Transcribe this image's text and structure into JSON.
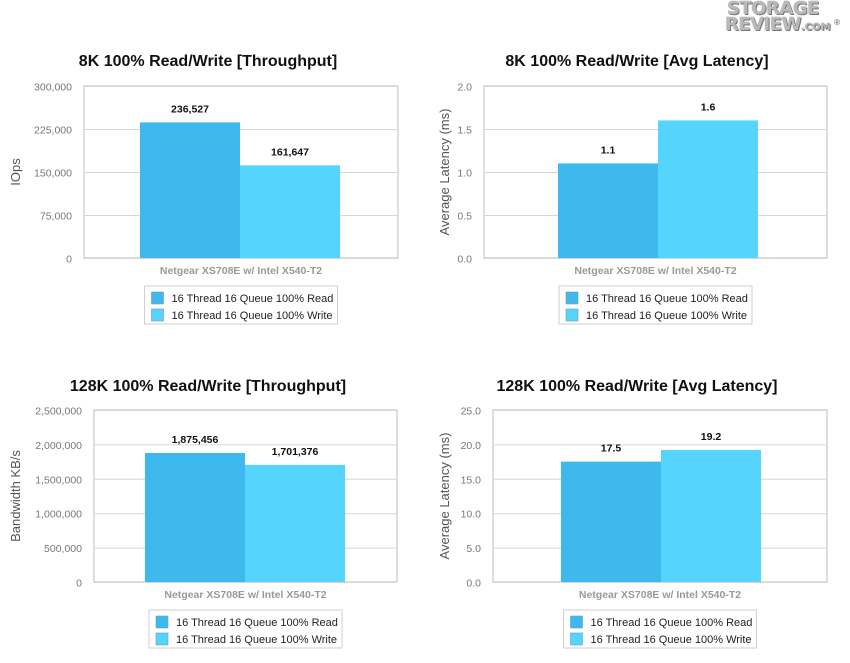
{
  "logo": {
    "top": "STORAGE",
    "bottom": "REVIEW",
    "suffix": ".COM",
    "reg": "®"
  },
  "colors": {
    "read": "#3fb8ee",
    "write": "#55d4fd",
    "grid": "#d6d6d6",
    "axis": "#bdbdbd"
  },
  "chart_data": [
    {
      "type": "bar",
      "title": "8K 100% Read/Write [Throughput]",
      "ylabel": "IOps",
      "xlabel": "Netgear XS708E w/ Intel X540-T2",
      "categories": [
        "Netgear XS708E w/ Intel X540-T2"
      ],
      "ylim": [
        0,
        300000
      ],
      "yticks": [
        0,
        75000,
        150000,
        225000,
        300000
      ],
      "ytick_labels": [
        "0",
        "75,000",
        "150,000",
        "225,000",
        "300,000"
      ],
      "series": [
        {
          "name": "16 Thread 16 Queue 100% Read",
          "values": [
            236527
          ],
          "labels": [
            "236,527"
          ]
        },
        {
          "name": "16 Thread 16 Queue 100% Write",
          "values": [
            161647
          ],
          "labels": [
            "161,647"
          ]
        }
      ],
      "grid": true,
      "legend": "bottom"
    },
    {
      "type": "bar",
      "title": "8K 100% Read/Write [Avg Latency]",
      "ylabel": "Average Latency (ms)",
      "xlabel": "Netgear XS708E w/ Intel X540-T2",
      "categories": [
        "Netgear XS708E w/ Intel X540-T2"
      ],
      "ylim": [
        0,
        2.0
      ],
      "yticks": [
        0,
        0.5,
        1.0,
        1.5,
        2.0
      ],
      "ytick_labels": [
        "0.0",
        "0.5",
        "1.0",
        "1.5",
        "2.0"
      ],
      "series": [
        {
          "name": "16 Thread 16 Queue 100% Read",
          "values": [
            1.1
          ],
          "labels": [
            "1.1"
          ]
        },
        {
          "name": "16 Thread 16 Queue 100% Write",
          "values": [
            1.6
          ],
          "labels": [
            "1.6"
          ]
        }
      ],
      "grid": true,
      "legend": "bottom"
    },
    {
      "type": "bar",
      "title": "128K 100% Read/Write [Throughput]",
      "ylabel": "Bandwidth KB/s",
      "xlabel": "Netgear XS708E w/ Intel X540-T2",
      "categories": [
        "Netgear XS708E w/ Intel X540-T2"
      ],
      "ylim": [
        0,
        2500000
      ],
      "yticks": [
        0,
        500000,
        1000000,
        1500000,
        2000000,
        2500000
      ],
      "ytick_labels": [
        "0",
        "500,000",
        "1,000,000",
        "1,500,000",
        "2,000,000",
        "2,500,000"
      ],
      "series": [
        {
          "name": "16 Thread 16 Queue 100% Read",
          "values": [
            1875456
          ],
          "labels": [
            "1,875,456"
          ]
        },
        {
          "name": "16 Thread 16 Queue 100% Write",
          "values": [
            1701376
          ],
          "labels": [
            "1,701,376"
          ]
        }
      ],
      "grid": true,
      "legend": "bottom"
    },
    {
      "type": "bar",
      "title": "128K 100% Read/Write [Avg Latency]",
      "ylabel": "Average Latency (ms)",
      "xlabel": "Netgear XS708E w/ Intel X540-T2",
      "categories": [
        "Netgear XS708E w/ Intel X540-T2"
      ],
      "ylim": [
        0,
        25.0
      ],
      "yticks": [
        0,
        5,
        10,
        15,
        20,
        25
      ],
      "ytick_labels": [
        "0.0",
        "5.0",
        "10.0",
        "15.0",
        "20.0",
        "25.0"
      ],
      "series": [
        {
          "name": "16 Thread 16 Queue 100% Read",
          "values": [
            17.5
          ],
          "labels": [
            "17.5"
          ]
        },
        {
          "name": "16 Thread 16 Queue 100% Write",
          "values": [
            19.2
          ],
          "labels": [
            "19.2"
          ]
        }
      ],
      "grid": true,
      "legend": "bottom"
    }
  ]
}
